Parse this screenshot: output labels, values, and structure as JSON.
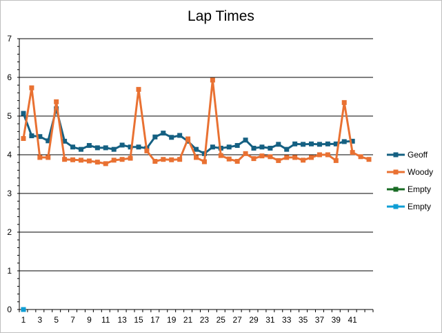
{
  "chart_data": {
    "type": "line",
    "title": "Lap Times",
    "xlabel": "",
    "ylabel": "",
    "ylim": [
      0,
      7
    ],
    "yticks": [
      0,
      1,
      2,
      3,
      4,
      5,
      6,
      7
    ],
    "x_count": 43,
    "xtick_labels": [
      "1",
      "3",
      "5",
      "7",
      "9",
      "11",
      "13",
      "15",
      "17",
      "19",
      "21",
      "23",
      "25",
      "27",
      "29",
      "31",
      "33",
      "35",
      "37",
      "39",
      "41"
    ],
    "grid": true,
    "legend_position": "right",
    "series": [
      {
        "name": "Geoff",
        "color": "#156082",
        "marker": "square",
        "values": [
          5.07,
          4.49,
          4.47,
          4.36,
          5.19,
          4.35,
          4.2,
          4.14,
          4.24,
          4.18,
          4.18,
          4.14,
          4.25,
          4.2,
          4.2,
          4.17,
          4.46,
          4.56,
          4.45,
          4.5,
          4.35,
          4.14,
          4.03,
          4.2,
          4.17,
          4.2,
          4.24,
          4.38,
          4.17,
          4.2,
          4.17,
          4.27,
          4.14,
          4.28,
          4.27,
          4.28,
          4.27,
          4.28,
          4.28,
          4.34,
          4.35
        ]
      },
      {
        "name": "Woody",
        "color": "#E97132",
        "marker": "square",
        "values": [
          4.42,
          5.73,
          3.93,
          3.93,
          5.37,
          3.88,
          3.87,
          3.86,
          3.84,
          3.81,
          3.77,
          3.86,
          3.88,
          3.91,
          5.69,
          4.1,
          3.83,
          3.88,
          3.87,
          3.88,
          4.41,
          3.93,
          3.82,
          5.93,
          3.98,
          3.89,
          3.83,
          4.03,
          3.9,
          3.97,
          3.95,
          3.85,
          3.93,
          3.93,
          3.86,
          3.93,
          4.0,
          4.0,
          3.85,
          5.35,
          4.06,
          3.95,
          3.88
        ]
      },
      {
        "name": "Empty",
        "color": "#196B24",
        "marker": "square",
        "values": [
          0
        ]
      },
      {
        "name": "Empty",
        "color": "#0F9ED5",
        "marker": "square",
        "values": [
          0
        ]
      }
    ]
  }
}
